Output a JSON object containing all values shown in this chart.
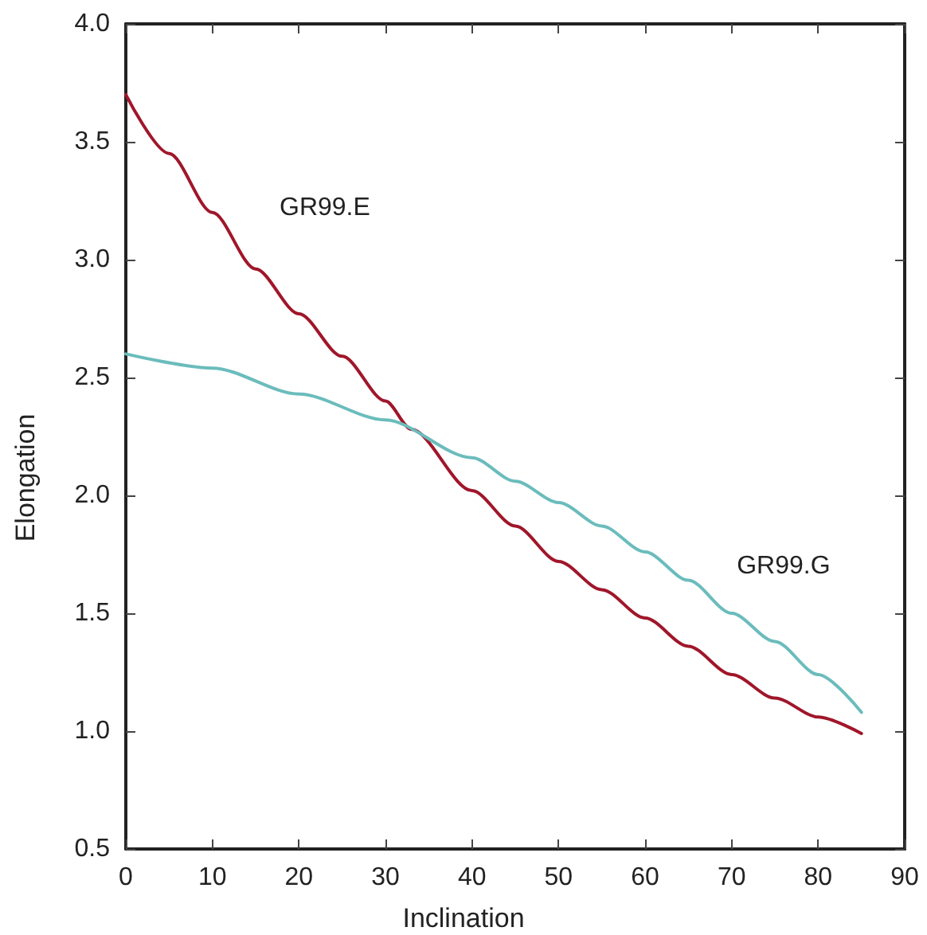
{
  "chart_data": {
    "type": "line",
    "xlabel": "Inclination",
    "ylabel": "Elongation",
    "xlim": [
      0,
      90
    ],
    "xticks": [
      0,
      10,
      20,
      30,
      40,
      50,
      60,
      70,
      80,
      90
    ],
    "ylim": [
      0.5,
      4.0
    ],
    "yticks": [
      {
        "value": 0.5,
        "label": "0.5"
      },
      {
        "value": 1.0,
        "label": "1.0"
      },
      {
        "value": 1.5,
        "label": "1.5"
      },
      {
        "value": 2.0,
        "label": "2.0"
      },
      {
        "value": 2.5,
        "label": "2.5"
      },
      {
        "value": 3.0,
        "label": "3.0"
      },
      {
        "value": 3.5,
        "label": "3.5"
      },
      {
        "value": 4.0,
        "label": "4.0"
      }
    ],
    "grid": false,
    "legend": false,
    "marker": "none",
    "line_style": "solid",
    "series": [
      {
        "name": "GR99.E",
        "color": "#a0162a",
        "x": [
          0,
          5,
          10,
          15,
          20,
          25,
          30,
          33,
          40,
          45,
          50,
          55,
          60,
          65,
          70,
          75,
          80,
          85
        ],
        "values": [
          3.7,
          3.45,
          3.2,
          2.96,
          2.77,
          2.59,
          2.4,
          2.28,
          2.02,
          1.87,
          1.72,
          1.6,
          1.48,
          1.36,
          1.24,
          1.14,
          1.06,
          0.99
        ]
      },
      {
        "name": "GR99.G",
        "color": "#6bbcbc",
        "x": [
          0,
          10,
          20,
          30,
          40,
          45,
          50,
          55,
          60,
          65,
          70,
          75,
          80,
          85
        ],
        "values": [
          2.6,
          2.54,
          2.43,
          2.32,
          2.16,
          2.06,
          1.97,
          1.87,
          1.76,
          1.64,
          1.5,
          1.38,
          1.24,
          1.08
        ]
      }
    ]
  }
}
